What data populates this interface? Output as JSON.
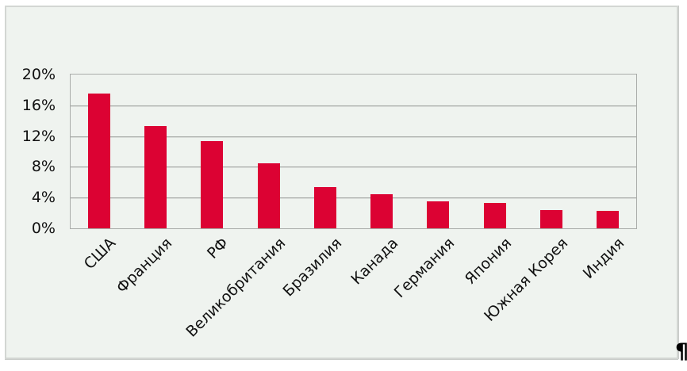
{
  "chart_data": {
    "type": "bar",
    "title": "",
    "xlabel": "",
    "ylabel": "",
    "categories": [
      "США",
      "Франция",
      "РФ",
      "Великобритания",
      "Бразилия",
      "Канада",
      "Германия",
      "Япония",
      "Южная Корея",
      "Индия"
    ],
    "values": [
      17.5,
      13.3,
      11.3,
      8.5,
      5.4,
      4.4,
      3.5,
      3.3,
      2.4,
      2.3
    ],
    "value_unit": "%",
    "ylim": [
      0,
      20
    ],
    "y_ticks": [
      {
        "label": "20%",
        "value": 20
      },
      {
        "label": "16%",
        "value": 16
      },
      {
        "label": "12%",
        "value": 12
      },
      {
        "label": "8%",
        "value": 8
      },
      {
        "label": "4%",
        "value": 4
      },
      {
        "label": "0%",
        "value": 0
      }
    ],
    "grid": "horizontal",
    "legend": "none",
    "x_label_rotation_deg": -45,
    "colors": {
      "bar": "#DC0233",
      "chart_background": "#EFF3EF",
      "page_background": "#FFFFFF",
      "gridline": "#A9ACA9",
      "axis_text": "#111111",
      "object_border": "#D3D6D3"
    }
  },
  "document": {
    "paragraph_mark": "¶"
  }
}
